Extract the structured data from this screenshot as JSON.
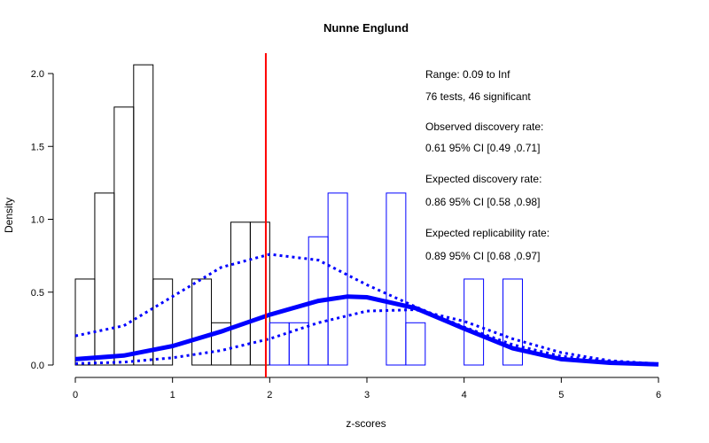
{
  "chart_data": {
    "type": "histogram",
    "title": "Nunne Englund",
    "xlabel": "z-scores",
    "ylabel": "Density",
    "xlim": [
      0,
      6
    ],
    "ylim": [
      0,
      2.0
    ],
    "x_ticks": [
      "0",
      "1",
      "2",
      "3",
      "4",
      "5",
      "6"
    ],
    "y_ticks": [
      "0.0",
      "0.5",
      "1.0",
      "1.5",
      "2.0"
    ],
    "grid": false,
    "bin_width": 0.2,
    "bins_nonsignificant": [
      {
        "x0": 0.0,
        "density": 0.59
      },
      {
        "x0": 0.2,
        "density": 1.18
      },
      {
        "x0": 0.4,
        "density": 1.77
      },
      {
        "x0": 0.6,
        "density": 2.06
      },
      {
        "x0": 0.8,
        "density": 0.59
      },
      {
        "x0": 1.2,
        "density": 0.59
      },
      {
        "x0": 1.4,
        "density": 0.29
      },
      {
        "x0": 1.6,
        "density": 0.98
      },
      {
        "x0": 1.8,
        "density": 0.98
      }
    ],
    "bins_significant": [
      {
        "x0": 2.0,
        "density": 0.29
      },
      {
        "x0": 2.2,
        "density": 0.29
      },
      {
        "x0": 2.4,
        "density": 0.88
      },
      {
        "x0": 2.6,
        "density": 1.18
      },
      {
        "x0": 3.2,
        "density": 1.18
      },
      {
        "x0": 3.4,
        "density": 0.29
      },
      {
        "x0": 4.0,
        "density": 0.59
      },
      {
        "x0": 4.4,
        "density": 0.59
      }
    ],
    "critical_value": 1.96,
    "fitted_curve": {
      "x": [
        0,
        0.5,
        1,
        1.5,
        2,
        2.5,
        2.8,
        3,
        3.5,
        4,
        4.5,
        5,
        5.5,
        6
      ],
      "y": [
        0.04,
        0.065,
        0.13,
        0.23,
        0.345,
        0.44,
        0.47,
        0.465,
        0.39,
        0.25,
        0.115,
        0.04,
        0.015,
        0.005
      ]
    },
    "ci_upper_curve": {
      "x": [
        0,
        0.5,
        1,
        1.5,
        2,
        2.5,
        3,
        3.5,
        4,
        4.5,
        5,
        5.5,
        6
      ],
      "y": [
        0.2,
        0.27,
        0.47,
        0.67,
        0.76,
        0.72,
        0.55,
        0.4,
        0.26,
        0.14,
        0.06,
        0.025,
        0.008
      ]
    },
    "ci_lower_curve": {
      "x": [
        0,
        0.5,
        1,
        1.5,
        2,
        2.5,
        3,
        3.5,
        4,
        4.5,
        5,
        5.5,
        6
      ],
      "y": [
        0.01,
        0.02,
        0.05,
        0.1,
        0.18,
        0.29,
        0.37,
        0.38,
        0.3,
        0.18,
        0.085,
        0.03,
        0.008
      ]
    },
    "annotations": [
      "Range: 0.09 to Inf",
      "76 tests, 46 significant",
      "Observed discovery rate:",
      "0.61  95% CI [0.49 ,0.71]",
      "Expected discovery rate:",
      "0.86  95% CI [0.58 ,0.98]",
      "Expected replicability rate:",
      "0.89  95% CI [0.68 ,0.97]"
    ],
    "colors": {
      "nonsignificant_bars": "#000000",
      "significant_bars": "#0000ff",
      "critical_line": "#ff0000",
      "curves": "#0000ff"
    }
  }
}
